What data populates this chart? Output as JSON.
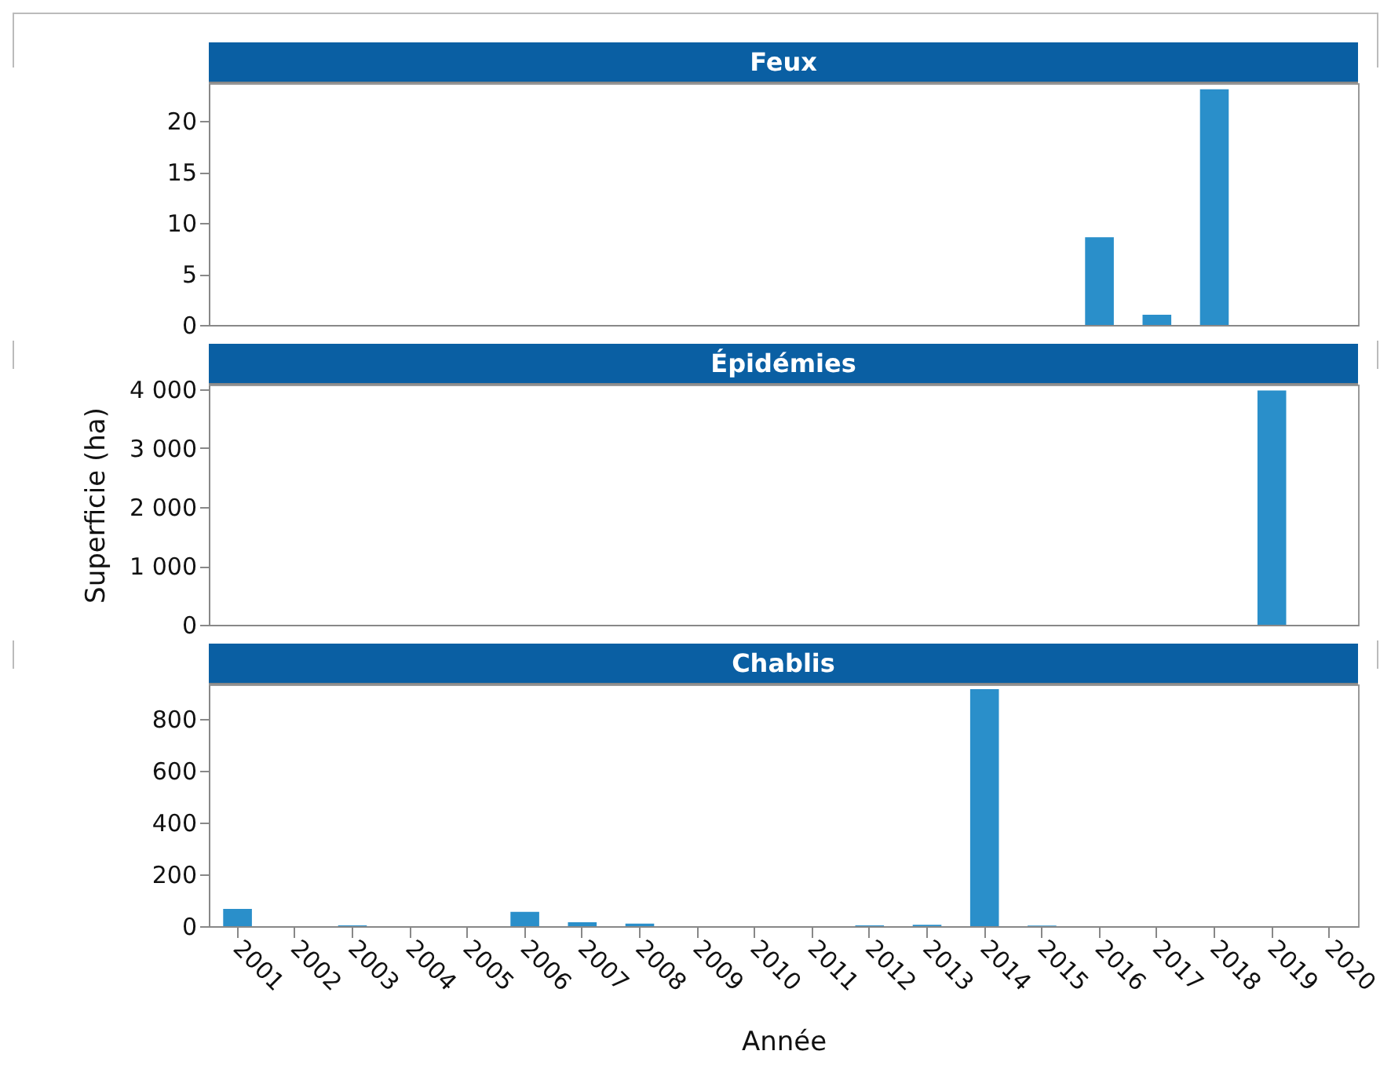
{
  "chart_data": [
    {
      "type": "bar",
      "title": "Feux",
      "categories": [
        "2001",
        "2002",
        "2003",
        "2004",
        "2005",
        "2006",
        "2007",
        "2008",
        "2009",
        "2010",
        "2011",
        "2012",
        "2013",
        "2014",
        "2015",
        "2016",
        "2017",
        "2018",
        "2019",
        "2020"
      ],
      "values": [
        0,
        0,
        0,
        0,
        0,
        0,
        0,
        0,
        0,
        0,
        0,
        0,
        0,
        0,
        0,
        8.6,
        1,
        23.1,
        0,
        0
      ],
      "color": "#2a8fca",
      "ylim": [
        0,
        23.7
      ],
      "yticks": [
        0,
        5,
        10,
        15,
        20
      ],
      "tick_labels": "y"
    },
    {
      "type": "bar",
      "title": "Épidémies",
      "ylabel": "Superficie (ha)",
      "categories": [
        "2001",
        "2002",
        "2003",
        "2004",
        "2005",
        "2006",
        "2007",
        "2008",
        "2009",
        "2010",
        "2011",
        "2012",
        "2013",
        "2014",
        "2015",
        "2016",
        "2017",
        "2018",
        "2019",
        "2020"
      ],
      "values": [
        0,
        0,
        0,
        0,
        0,
        0,
        0,
        0,
        0,
        0,
        0,
        0,
        0,
        0,
        0,
        0,
        0,
        0,
        3980,
        0
      ],
      "color": "#2a8fca",
      "ylim": [
        0,
        4080
      ],
      "yticks": [
        0,
        {
          "value": 1000,
          "label": "1 000"
        },
        {
          "value": 2000,
          "label": "2 000"
        },
        {
          "value": 3000,
          "label": "3 000"
        },
        {
          "value": 4000,
          "label": "4 000"
        }
      ],
      "tick_labels": "y"
    },
    {
      "type": "bar",
      "title": "Chablis",
      "xlabel": "Année",
      "categories": [
        "2001",
        "2002",
        "2003",
        "2004",
        "2005",
        "2006",
        "2007",
        "2008",
        "2009",
        "2010",
        "2011",
        "2012",
        "2013",
        "2014",
        "2015",
        "2016",
        "2017",
        "2018",
        "2019",
        "2020"
      ],
      "values": [
        67,
        0,
        3,
        0,
        0,
        55,
        15,
        10,
        0,
        0,
        0,
        3,
        5,
        915,
        2,
        0,
        0,
        0,
        0,
        0
      ],
      "color": "#2a8fca",
      "ylim": [
        0,
        933
      ],
      "yticks": [
        0,
        200,
        400,
        600,
        800
      ]
    }
  ]
}
